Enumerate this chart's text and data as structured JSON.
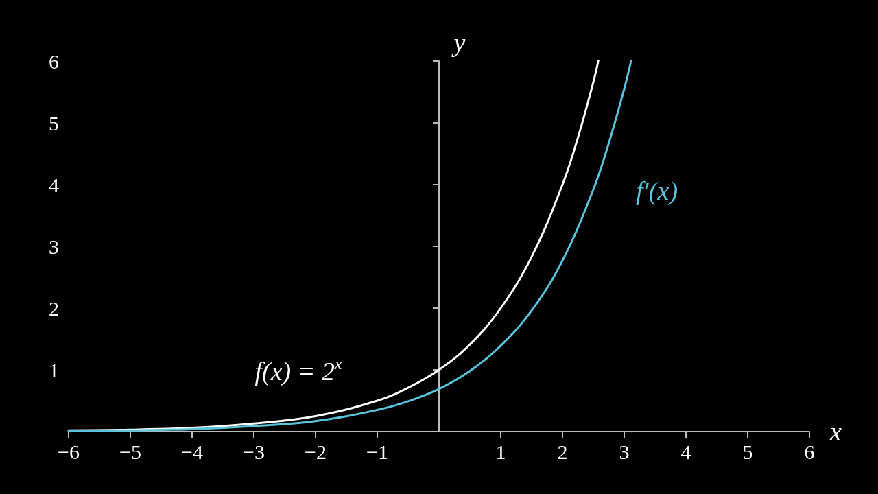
{
  "chart_data": {
    "type": "line",
    "xlabel": "x",
    "ylabel": "y",
    "xlim": [
      -6,
      6
    ],
    "ylim": [
      0,
      6
    ],
    "xticks": [
      {
        "value": -6,
        "label": "−6"
      },
      {
        "value": -5,
        "label": "−5"
      },
      {
        "value": -4,
        "label": "−4"
      },
      {
        "value": -3,
        "label": "−3"
      },
      {
        "value": -2,
        "label": "−2"
      },
      {
        "value": -1,
        "label": "−1"
      },
      1,
      2,
      3,
      4,
      5,
      6
    ],
    "yticks": [
      1,
      2,
      3,
      4,
      5,
      6
    ],
    "series": [
      {
        "name": "f(x) = 2$^{x}$",
        "color": "#ffffff",
        "x": [
          -6,
          -5,
          -4,
          -3,
          -2,
          -1,
          -0.5,
          0,
          0.5,
          1,
          1.5,
          2,
          2.25,
          2.5,
          2.58
        ],
        "values": [
          0.02,
          0.03,
          0.06,
          0.13,
          0.25,
          0.5,
          0.71,
          1,
          1.41,
          2,
          2.83,
          4,
          4.76,
          5.66,
          6
        ]
      },
      {
        "name": "f′(x)",
        "color": "#58c4dd",
        "x": [
          -6,
          -5,
          -4,
          -3,
          -2,
          -1,
          -0.5,
          0,
          0.5,
          1,
          1.5,
          2,
          2.5,
          2.75,
          3,
          3.11
        ],
        "values": [
          0.01,
          0.02,
          0.04,
          0.09,
          0.17,
          0.35,
          0.49,
          0.69,
          0.98,
          1.39,
          1.96,
          2.77,
          3.92,
          4.67,
          5.55,
          6
        ]
      }
    ]
  }
}
